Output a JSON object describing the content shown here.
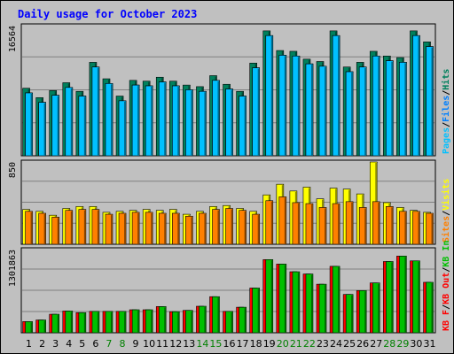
{
  "title": "Daily usage for October 2023",
  "colors": {
    "hits": "#00805c",
    "files": "#0080ff",
    "pages": "#00c0ff",
    "visits": "#ffff00",
    "sites": "#ff8000",
    "kb_in": "#00c000",
    "kb_out": "#ff0000",
    "title": "#0000ff",
    "weekend_label": "#008000",
    "weekday_label": "#000000",
    "panel_bg": "#c0c0c0"
  },
  "chart_data": [
    {
      "type": "bar",
      "panel": "hits-files-pages",
      "legend": [
        {
          "text": "Pages",
          "color": "#00c0ff"
        },
        {
          "text": "/",
          "color": "#000000"
        },
        {
          "text": "Files",
          "color": "#0080ff"
        },
        {
          "text": "/",
          "color": "#000000"
        },
        {
          "text": "Hits",
          "color": "#00805c"
        }
      ],
      "ymax_label": "16564",
      "ylim": [
        0,
        16564
      ],
      "categories": [
        "1",
        "2",
        "3",
        "4",
        "5",
        "6",
        "7",
        "8",
        "9",
        "10",
        "11",
        "12",
        "13",
        "14",
        "15",
        "16",
        "17",
        "18",
        "19",
        "20",
        "21",
        "22",
        "23",
        "24",
        "25",
        "26",
        "27",
        "28",
        "29",
        "30",
        "31"
      ],
      "weekend": [
        false,
        false,
        false,
        false,
        false,
        false,
        true,
        true,
        false,
        false,
        false,
        false,
        false,
        true,
        true,
        false,
        false,
        false,
        false,
        true,
        true,
        true,
        false,
        false,
        false,
        false,
        false,
        true,
        true,
        false,
        false
      ],
      "series": [
        {
          "name": "Hits",
          "values": [
            8600,
            7400,
            8300,
            9300,
            8200,
            11900,
            9800,
            7600,
            9600,
            9500,
            10000,
            9500,
            9000,
            8800,
            10200,
            9100,
            8200,
            11800,
            15900,
            13400,
            13300,
            12300,
            12000,
            15900,
            11300,
            11900,
            13300,
            12700,
            12500,
            15900,
            14500
          ]
        },
        {
          "name": "Files",
          "values": [
            8000,
            6800,
            7700,
            8700,
            7600,
            11300,
            9200,
            7000,
            9000,
            8900,
            9400,
            8900,
            8400,
            8200,
            9600,
            8500,
            7600,
            11200,
            15300,
            12800,
            12700,
            11700,
            11400,
            15300,
            10700,
            11300,
            12700,
            12100,
            11900,
            15300,
            13900
          ]
        },
        {
          "name": "Pages",
          "values": [
            8000,
            6800,
            7700,
            8700,
            7600,
            11300,
            9200,
            7000,
            9000,
            8900,
            9400,
            8900,
            8400,
            8200,
            9600,
            8500,
            7600,
            11200,
            15300,
            12800,
            12700,
            11700,
            11400,
            15300,
            10700,
            11300,
            12700,
            12100,
            11900,
            15300,
            13900
          ]
        }
      ]
    },
    {
      "type": "bar",
      "panel": "visits-sites",
      "legend": [
        {
          "text": "Sites",
          "color": "#ff8000"
        },
        {
          "text": "/",
          "color": "#000000"
        },
        {
          "text": "Visits",
          "color": "#ffff00"
        }
      ],
      "ymax_label": "850",
      "ylim": [
        0,
        850
      ],
      "series": [
        {
          "name": "Visits",
          "values": [
            360,
            340,
            300,
            370,
            390,
            390,
            330,
            340,
            350,
            360,
            350,
            360,
            310,
            340,
            390,
            400,
            370,
            340,
            510,
            620,
            550,
            590,
            470,
            580,
            570,
            520,
            850,
            430,
            380,
            350,
            330
          ]
        },
        {
          "name": "Sites",
          "values": [
            340,
            320,
            280,
            350,
            360,
            360,
            310,
            320,
            330,
            330,
            320,
            320,
            290,
            320,
            360,
            370,
            350,
            310,
            450,
            490,
            430,
            420,
            380,
            420,
            440,
            380,
            440,
            390,
            340,
            340,
            320
          ]
        }
      ]
    },
    {
      "type": "bar",
      "panel": "kbin-kbout",
      "legend": [
        {
          "text": "KB F",
          "color": "#ff0000"
        },
        {
          "text": "/",
          "color": "#000000"
        },
        {
          "text": "KB Out",
          "color": "#ff0000"
        },
        {
          "text": "/",
          "color": "#000000"
        },
        {
          "text": "KB In",
          "color": "#00c000"
        }
      ],
      "ymax_label": "1301863",
      "ylim": [
        0,
        1301863
      ],
      "series": [
        {
          "name": "KB Out",
          "values": [
            175000,
            200000,
            290000,
            340000,
            315000,
            335000,
            335000,
            335000,
            360000,
            360000,
            410000,
            330000,
            350000,
            415000,
            565000,
            335000,
            400000,
            700000,
            1145000,
            1075000,
            955000,
            920000,
            760000,
            1040000,
            600000,
            660000,
            780000,
            1115000,
            1200000,
            1125000,
            790000
          ]
        },
        {
          "name": "KB In",
          "values": [
            175000,
            200000,
            290000,
            340000,
            315000,
            335000,
            335000,
            335000,
            360000,
            360000,
            410000,
            330000,
            350000,
            415000,
            565000,
            335000,
            400000,
            700000,
            1145000,
            1075000,
            955000,
            920000,
            760000,
            1040000,
            600000,
            660000,
            780000,
            1115000,
            1200000,
            1125000,
            790000
          ]
        }
      ]
    }
  ]
}
